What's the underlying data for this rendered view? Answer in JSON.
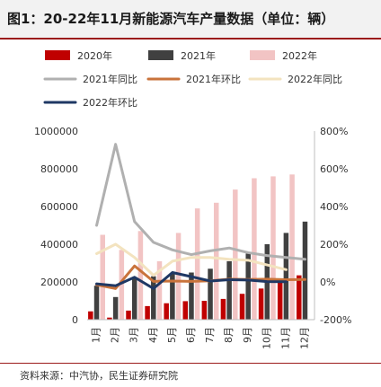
{
  "header": {
    "title": "图1：20-22年11月新能源汽车产量数据（单位：辆）"
  },
  "footer": {
    "source": "资料来源：中汽协，民生证券研究院"
  },
  "colors": {
    "bar_2020": "#c00000",
    "bar_2021": "#404040",
    "bar_2022": "#f2c4c4",
    "line_2021_yoy": "#b0b0b0",
    "line_2021_mom": "#c9733b",
    "line_2022_yoy": "#f3e3bf",
    "line_2022_mom": "#1f3864",
    "header_accent": "#9b1b1b"
  },
  "chart_data": {
    "type": "bar",
    "categories": [
      "1月",
      "2月",
      "3月",
      "4月",
      "5月",
      "6月",
      "7月",
      "8月",
      "9月",
      "10月",
      "11月",
      "12月"
    ],
    "series": [
      {
        "name": "2020年",
        "kind": "bar",
        "axis": "left",
        "values": [
          44000,
          11000,
          48000,
          72000,
          87000,
          98000,
          100000,
          110000,
          137000,
          165000,
          200000,
          235000
        ]
      },
      {
        "name": "2021年",
        "kind": "bar",
        "axis": "left",
        "values": [
          180000,
          120000,
          220000,
          230000,
          245000,
          250000,
          270000,
          310000,
          350000,
          400000,
          460000,
          520000
        ]
      },
      {
        "name": "2022年",
        "kind": "bar",
        "axis": "left",
        "values": [
          450000,
          370000,
          470000,
          310000,
          460000,
          590000,
          620000,
          690000,
          750000,
          760000,
          770000,
          null
        ]
      },
      {
        "name": "2021年同比",
        "kind": "line",
        "axis": "right",
        "values": [
          300,
          730,
          320,
          210,
          170,
          145,
          165,
          180,
          155,
          140,
          130,
          120
        ]
      },
      {
        "name": "2021年环比",
        "kind": "line",
        "axis": "right",
        "values": [
          -15,
          -35,
          85,
          3,
          5,
          3,
          6,
          15,
          13,
          15,
          12,
          13
        ]
      },
      {
        "name": "2022年同比",
        "kind": "line",
        "axis": "right",
        "values": [
          150,
          200,
          130,
          35,
          110,
          130,
          130,
          120,
          115,
          90,
          65,
          null
        ]
      },
      {
        "name": "2022年环比",
        "kind": "line",
        "axis": "right",
        "values": [
          -10,
          -20,
          25,
          -35,
          50,
          28,
          5,
          12,
          10,
          2,
          1,
          null
        ]
      }
    ],
    "yleft": {
      "ticks": [
        "0",
        "200000",
        "400000",
        "600000",
        "800000",
        "1000000"
      ],
      "ylim": [
        0,
        1000000
      ]
    },
    "yright": {
      "ticks": [
        "-200%",
        "0%",
        "200%",
        "400%",
        "600%",
        "800%"
      ],
      "ylim": [
        -200,
        800
      ]
    },
    "grid": false,
    "legend": "top"
  }
}
